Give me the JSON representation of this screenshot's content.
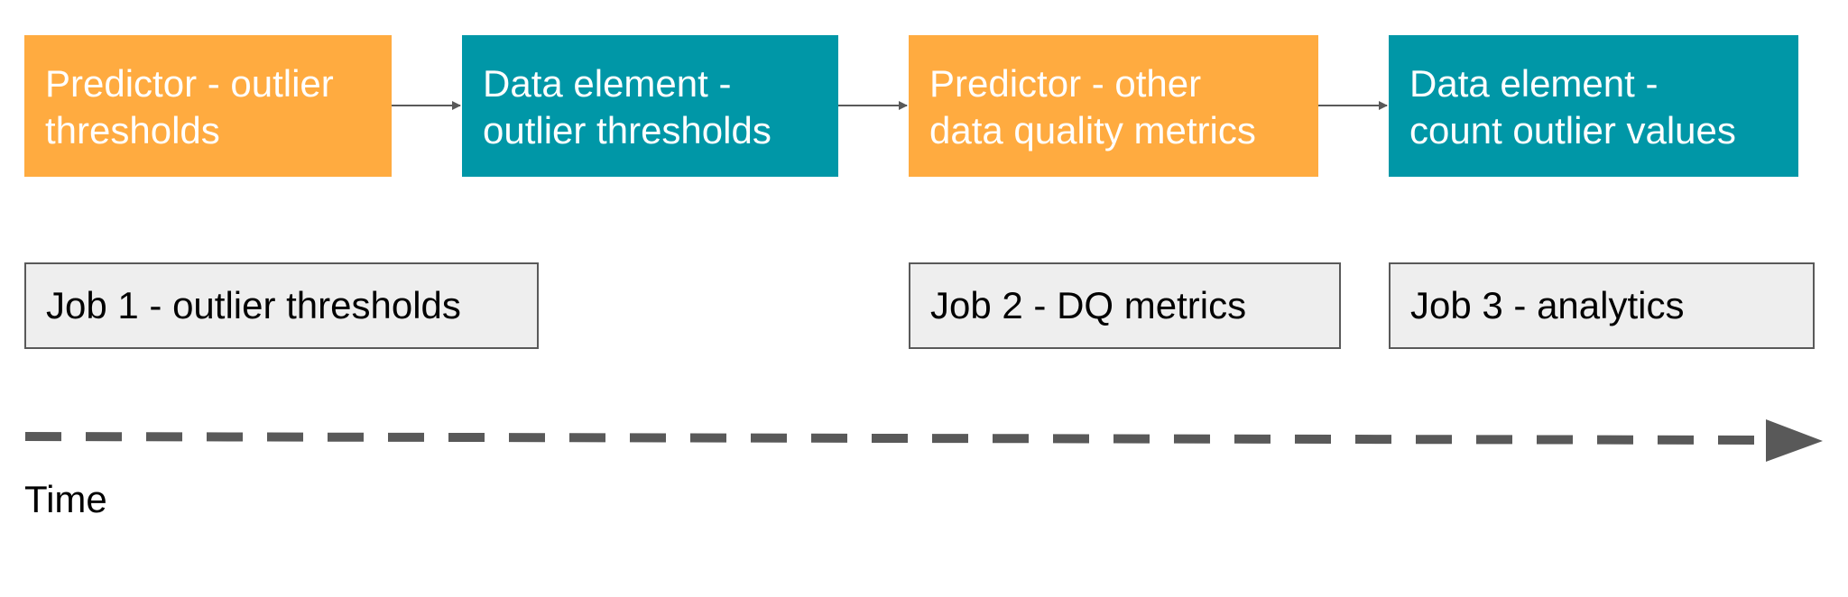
{
  "colors": {
    "predictor": "#FFAB40",
    "data_element": "#0097A7",
    "job_fill": "#EEEEEE",
    "job_border": "#595959",
    "arrow": "#595959"
  },
  "steps": [
    {
      "kind": "predictor",
      "line1": "Predictor - outlier",
      "line2": "thresholds"
    },
    {
      "kind": "data-element",
      "line1": "Data element -",
      "line2": "outlier thresholds"
    },
    {
      "kind": "predictor",
      "line1": "Predictor - other",
      "line2": "data quality metrics"
    },
    {
      "kind": "data-element",
      "line1": "Data element -",
      "line2": "count outlier values"
    }
  ],
  "jobs": [
    {
      "label": "Job 1 - outlier thresholds"
    },
    {
      "label": "Job 2 - DQ metrics"
    },
    {
      "label": "Job 3 - analytics"
    }
  ],
  "timeline": {
    "label": "Time"
  }
}
